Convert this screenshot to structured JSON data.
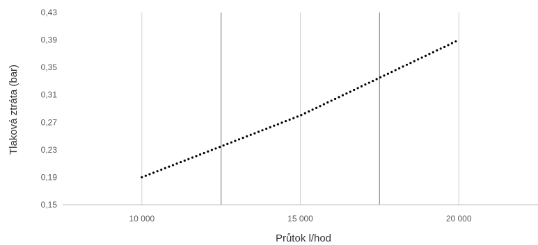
{
  "chart_data": {
    "type": "line",
    "xlabel": "Průtok l/hod",
    "ylabel": "Tlaková ztráta (bar)",
    "xlim": [
      7500,
      22500
    ],
    "ylim": [
      0.15,
      0.43
    ],
    "x_ticks": [
      10000,
      15000,
      20000
    ],
    "x_tick_labels": [
      "10 000",
      "15 000",
      "20 000"
    ],
    "y_ticks": [
      0.15,
      0.19,
      0.23,
      0.27,
      0.31,
      0.35,
      0.39,
      0.43
    ],
    "y_tick_labels": [
      "0,15",
      "0,19",
      "0,23",
      "0,27",
      "0,31",
      "0,35",
      "0,39",
      "0,43"
    ],
    "grid": "vertical",
    "series": [
      {
        "line_style": "dotted",
        "color": "#000000",
        "x": [
          10000,
          12500,
          15000,
          17500,
          20000
        ],
        "y": [
          0.19,
          0.235,
          0.28,
          0.335,
          0.39
        ]
      }
    ]
  }
}
